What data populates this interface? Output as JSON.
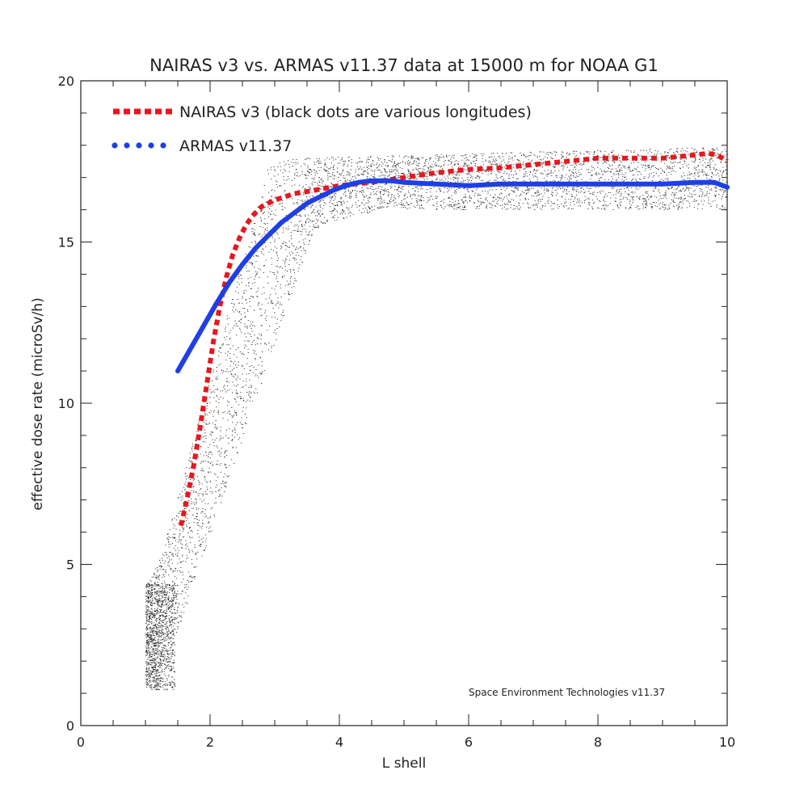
{
  "chart_data": {
    "type": "line",
    "title": "NAIRAS  v3 vs. ARMAS v11.37 data at 15000 m for NOAA G1",
    "xlabel": "L shell",
    "ylabel": "effective dose rate (microSv/h)",
    "xlim": [
      0,
      10
    ],
    "ylim": [
      0,
      20
    ],
    "xticks": [
      0,
      2,
      4,
      6,
      8,
      10
    ],
    "yticks": [
      0,
      5,
      10,
      15,
      20
    ],
    "xticklabels": [
      "0",
      "2",
      "4",
      "6",
      "8",
      "10"
    ],
    "yticklabels": [
      "0",
      "5",
      "10",
      "15",
      "20"
    ],
    "legend_position": "top-left",
    "grid": false,
    "annotation": "Space Environment Technologies v11.37",
    "series": [
      {
        "name": "NAIRAS v3 (black dots are various longitudes)",
        "color": "#e8171d",
        "style": "dotted",
        "x": [
          1.55,
          1.65,
          1.75,
          1.85,
          1.95,
          2.05,
          2.15,
          2.25,
          2.35,
          2.45,
          2.55,
          2.65,
          2.8,
          3.0,
          3.3,
          3.6,
          4.0,
          4.5,
          5.0,
          5.5,
          6.0,
          6.5,
          7.0,
          7.5,
          8.0,
          8.5,
          9.0,
          9.5,
          9.7,
          9.85,
          10.0
        ],
        "y": [
          6.2,
          7.1,
          8.1,
          9.3,
          10.6,
          11.9,
          13.0,
          13.9,
          14.6,
          15.1,
          15.5,
          15.8,
          16.1,
          16.3,
          16.5,
          16.6,
          16.75,
          16.85,
          17.0,
          17.15,
          17.25,
          17.3,
          17.4,
          17.5,
          17.6,
          17.6,
          17.6,
          17.7,
          17.75,
          17.7,
          17.5
        ]
      },
      {
        "name": "ARMAS v11.37",
        "color": "#1f3fe6",
        "style": "solid",
        "x": [
          1.5,
          1.7,
          1.9,
          2.1,
          2.3,
          2.5,
          2.7,
          2.9,
          3.1,
          3.3,
          3.5,
          3.7,
          3.9,
          4.1,
          4.3,
          4.5,
          4.8,
          5.0,
          5.5,
          6.0,
          6.5,
          7.0,
          7.5,
          8.0,
          8.5,
          9.0,
          9.5,
          9.8,
          10.0
        ],
        "y": [
          11.0,
          11.7,
          12.4,
          13.1,
          13.75,
          14.3,
          14.8,
          15.2,
          15.6,
          15.9,
          16.2,
          16.4,
          16.6,
          16.75,
          16.85,
          16.9,
          16.9,
          16.85,
          16.8,
          16.75,
          16.8,
          16.8,
          16.8,
          16.8,
          16.8,
          16.8,
          16.85,
          16.85,
          16.7
        ]
      }
    ],
    "scatter_background": {
      "name": "various longitudes",
      "color": "#000000",
      "description_source": "legend"
    }
  }
}
